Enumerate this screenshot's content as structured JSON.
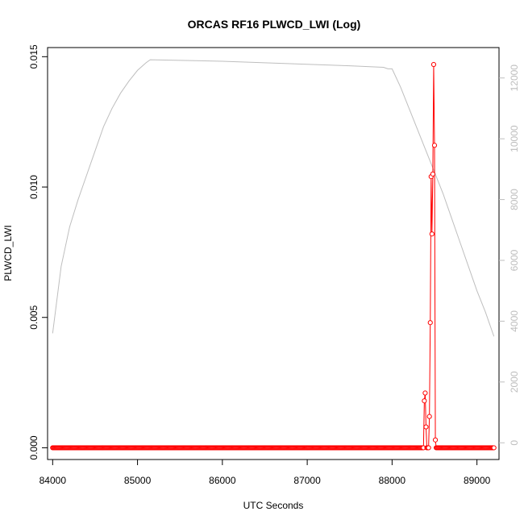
{
  "chart_data": {
    "type": "line",
    "title": "ORCAS RF16 PLWCD_LWI (Log)",
    "xlabel": "UTC Seconds",
    "ylabel": "PLWCD_LWI",
    "xlim": [
      83940,
      89260
    ],
    "ylim": [
      -0.00045,
      0.01535
    ],
    "y2lim": [
      -550,
      13000
    ],
    "x_ticks": [
      84000,
      85000,
      86000,
      87000,
      88000,
      89000
    ],
    "y_ticks": [
      0.0,
      0.005,
      0.01,
      0.015
    ],
    "y_tick_labels": [
      "0.000",
      "0.005",
      "0.010",
      "0.015"
    ],
    "y2_ticks": [
      0,
      2000,
      4000,
      6000,
      8000,
      10000,
      12000
    ],
    "y2_tick_labels": [
      "0",
      "2000",
      "4000",
      "6000",
      "8000",
      "10000",
      "12000"
    ],
    "grid": false,
    "series": [
      {
        "role": "main",
        "color": "#ff0000",
        "baseline": {
          "x_start": 84000,
          "x_end": 88380,
          "x_start2": 88520,
          "x_end2": 89200,
          "step": 10,
          "value": 0.0
        },
        "points": [
          {
            "x": 88380,
            "y": 0.0018
          },
          {
            "x": 88390,
            "y": 0.0021
          },
          {
            "x": 88400,
            "y": 0.0008
          },
          {
            "x": 88410,
            "y": 0.0
          },
          {
            "x": 88420,
            "y": 0.0
          },
          {
            "x": 88430,
            "y": 0.0
          },
          {
            "x": 88440,
            "y": 0.0012
          },
          {
            "x": 88450,
            "y": 0.0048
          },
          {
            "x": 88460,
            "y": 0.0104
          },
          {
            "x": 88470,
            "y": 0.0082
          },
          {
            "x": 88480,
            "y": 0.0105
          },
          {
            "x": 88490,
            "y": 0.0147
          },
          {
            "x": 88500,
            "y": 0.0116
          },
          {
            "x": 88510,
            "y": 0.0003
          }
        ]
      },
      {
        "role": "secondary-axis",
        "color": "#bebebe",
        "x": [
          84000,
          84100,
          84200,
          84300,
          84400,
          84500,
          84600,
          84700,
          84800,
          84900,
          85000,
          85100,
          85150,
          85500,
          86000,
          86500,
          87000,
          87500,
          87900,
          87950,
          88000,
          88100,
          88200,
          88300,
          88400,
          88500,
          88600,
          88700,
          88800,
          88900,
          89000,
          89100,
          89200
        ],
        "y": [
          3600,
          5800,
          7100,
          8000,
          8800,
          9600,
          10400,
          11000,
          11500,
          11900,
          12250,
          12500,
          12600,
          12580,
          12550,
          12500,
          12450,
          12400,
          12350,
          12300,
          12300,
          11700,
          11000,
          10300,
          9600,
          8900,
          8200,
          7400,
          6600,
          5800,
          5000,
          4300,
          3500
        ]
      }
    ]
  }
}
